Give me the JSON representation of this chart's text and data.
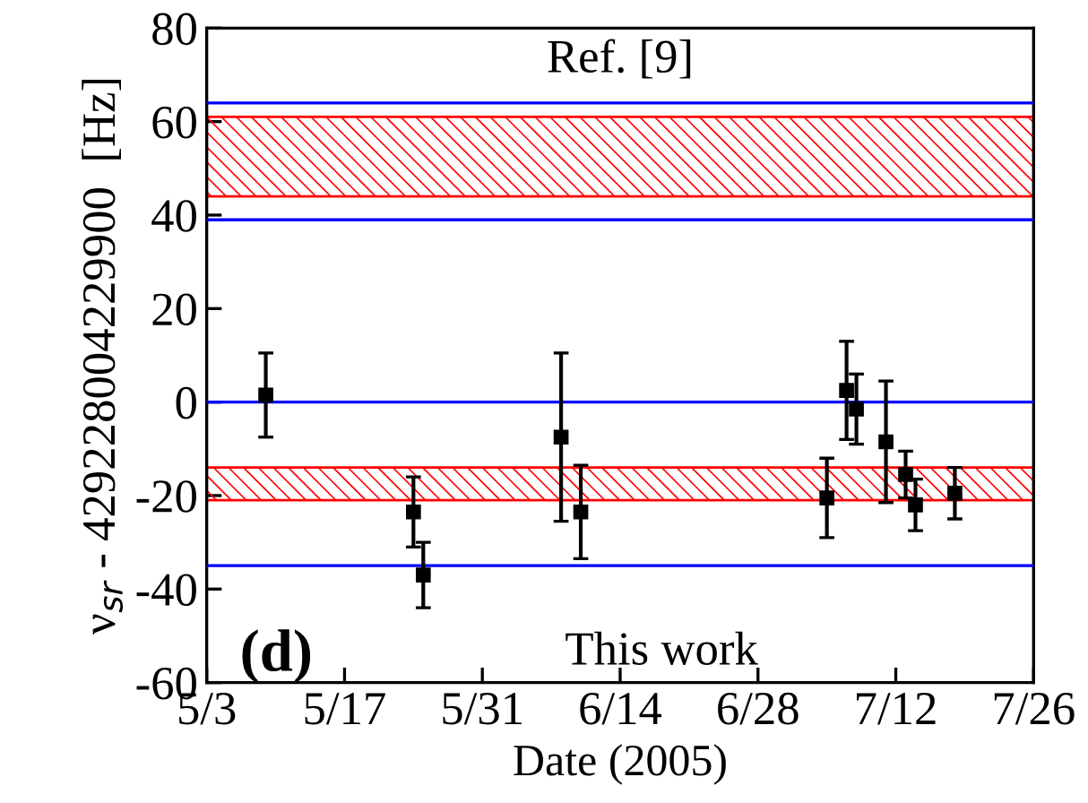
{
  "chart_data": {
    "type": "scatter",
    "xlabel": "Date (2005)",
    "ylabel": "ν$_{sr}$ - 429228004229900  [Hz]",
    "x": [
      "2005-05-09",
      "2005-05-24",
      "2005-05-25",
      "2005-06-08",
      "2005-06-10",
      "2005-07-05",
      "2005-07-07",
      "2005-07-08",
      "2005-07-11",
      "2005-07-13",
      "2005-07-14",
      "2005-07-18"
    ],
    "series": [
      {
        "color": "#000000",
        "values": [
          1.5,
          -23.5,
          -37,
          -7.5,
          -23.5,
          -20.5,
          2.5,
          -1.5,
          -8.5,
          -15.5,
          -22,
          -19.5
        ],
        "errors": [
          9,
          7.5,
          7,
          18,
          10,
          8.5,
          10.5,
          7.5,
          13,
          5,
          5.5,
          5.5
        ]
      }
    ],
    "marker": "square",
    "xlim": [
      "2005-05-03",
      "2005-07-26"
    ],
    "xticks": [
      {
        "value": "2005-05-03",
        "label": "5/3"
      },
      {
        "value": "2005-05-17",
        "label": "5/17"
      },
      {
        "value": "2005-05-31",
        "label": "5/31"
      },
      {
        "value": "2005-06-14",
        "label": "6/14"
      },
      {
        "value": "2005-06-28",
        "label": "6/28"
      },
      {
        "value": "2005-07-12",
        "label": "7/12"
      },
      {
        "value": "2005-07-26",
        "label": "7/26"
      }
    ],
    "ylim": [
      -60,
      80
    ],
    "yticks": [
      -60,
      -40,
      -20,
      0,
      20,
      40,
      60,
      80
    ],
    "bands": [
      {
        "axis": "y",
        "from": 44,
        "to": 61,
        "color": "#ff0000"
      },
      {
        "axis": "y",
        "from": -21,
        "to": -14,
        "color": "#ff0000"
      }
    ],
    "ref_lines": [
      {
        "axis": "y",
        "value": 64,
        "color": "#0000ff"
      },
      {
        "axis": "y",
        "value": 39,
        "color": "#0000ff"
      },
      {
        "axis": "y",
        "value": 0,
        "color": "#0000ff"
      },
      {
        "axis": "y",
        "value": -35,
        "color": "#0000ff"
      }
    ],
    "annotations": [
      "Ref. [9]",
      "This work",
      "(d)"
    ],
    "grid": false,
    "legend": false
  }
}
